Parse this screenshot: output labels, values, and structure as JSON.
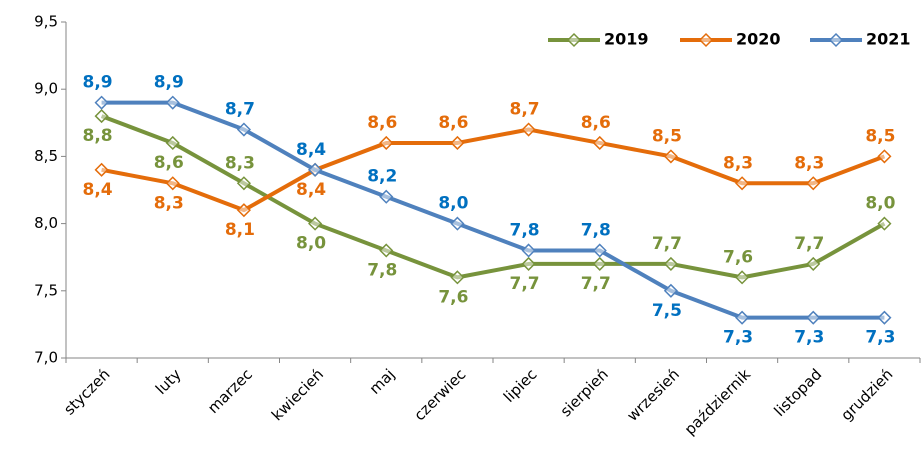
{
  "chart_data": {
    "type": "line",
    "categories": [
      "styczeń",
      "luty",
      "marzec",
      "kwiecień",
      "maj",
      "czerwiec",
      "lipiec",
      "sierpień",
      "wrzesień",
      "październik",
      "listopad",
      "grudzień"
    ],
    "series": [
      {
        "name": "2019",
        "color": "#77933c",
        "label_color": "#77933c",
        "values": [
          8.8,
          8.6,
          8.3,
          8.0,
          7.8,
          7.6,
          7.7,
          7.7,
          7.7,
          7.6,
          7.7,
          8.0
        ],
        "value_labels": [
          "8,8",
          "8,6",
          "8,3",
          "8,0",
          "7,8",
          "7,6",
          "7,7",
          "7,7",
          "7,7",
          "7,6",
          "7,7",
          "8,0"
        ]
      },
      {
        "name": "2020",
        "color": "#e46c0a",
        "label_color": "#e46c0a",
        "values": [
          8.4,
          8.3,
          8.1,
          8.4,
          8.6,
          8.6,
          8.7,
          8.6,
          8.5,
          8.3,
          8.3,
          8.5
        ],
        "value_labels": [
          "8,4",
          "8,3",
          "8,1",
          "8,4",
          "8,6",
          "8,6",
          "8,7",
          "8,6",
          "8,5",
          "8,3",
          "8,3",
          "8,5"
        ]
      },
      {
        "name": "2021",
        "color": "#4f81bd",
        "label_color": "#0070c0",
        "values": [
          8.9,
          8.9,
          8.7,
          8.4,
          8.2,
          8.0,
          7.8,
          7.8,
          7.5,
          7.3,
          7.3,
          7.3
        ],
        "value_labels": [
          "8,9",
          "8,9",
          "8,7",
          "8,4",
          "8,2",
          "8,0",
          "7,8",
          "7,8",
          "7,5",
          "7,3",
          "7,3",
          "7,3"
        ]
      }
    ],
    "ylim": [
      7.0,
      9.5
    ],
    "yticks": [
      {
        "value": 7.0,
        "label": "7,0"
      },
      {
        "value": 7.5,
        "label": "7,5"
      },
      {
        "value": 8.0,
        "label": "8,0"
      },
      {
        "value": 8.5,
        "label": "8,5"
      },
      {
        "value": 9.0,
        "label": "9,0"
      },
      {
        "value": 9.5,
        "label": "9,5"
      }
    ],
    "grid": false,
    "legend": "top-right"
  }
}
